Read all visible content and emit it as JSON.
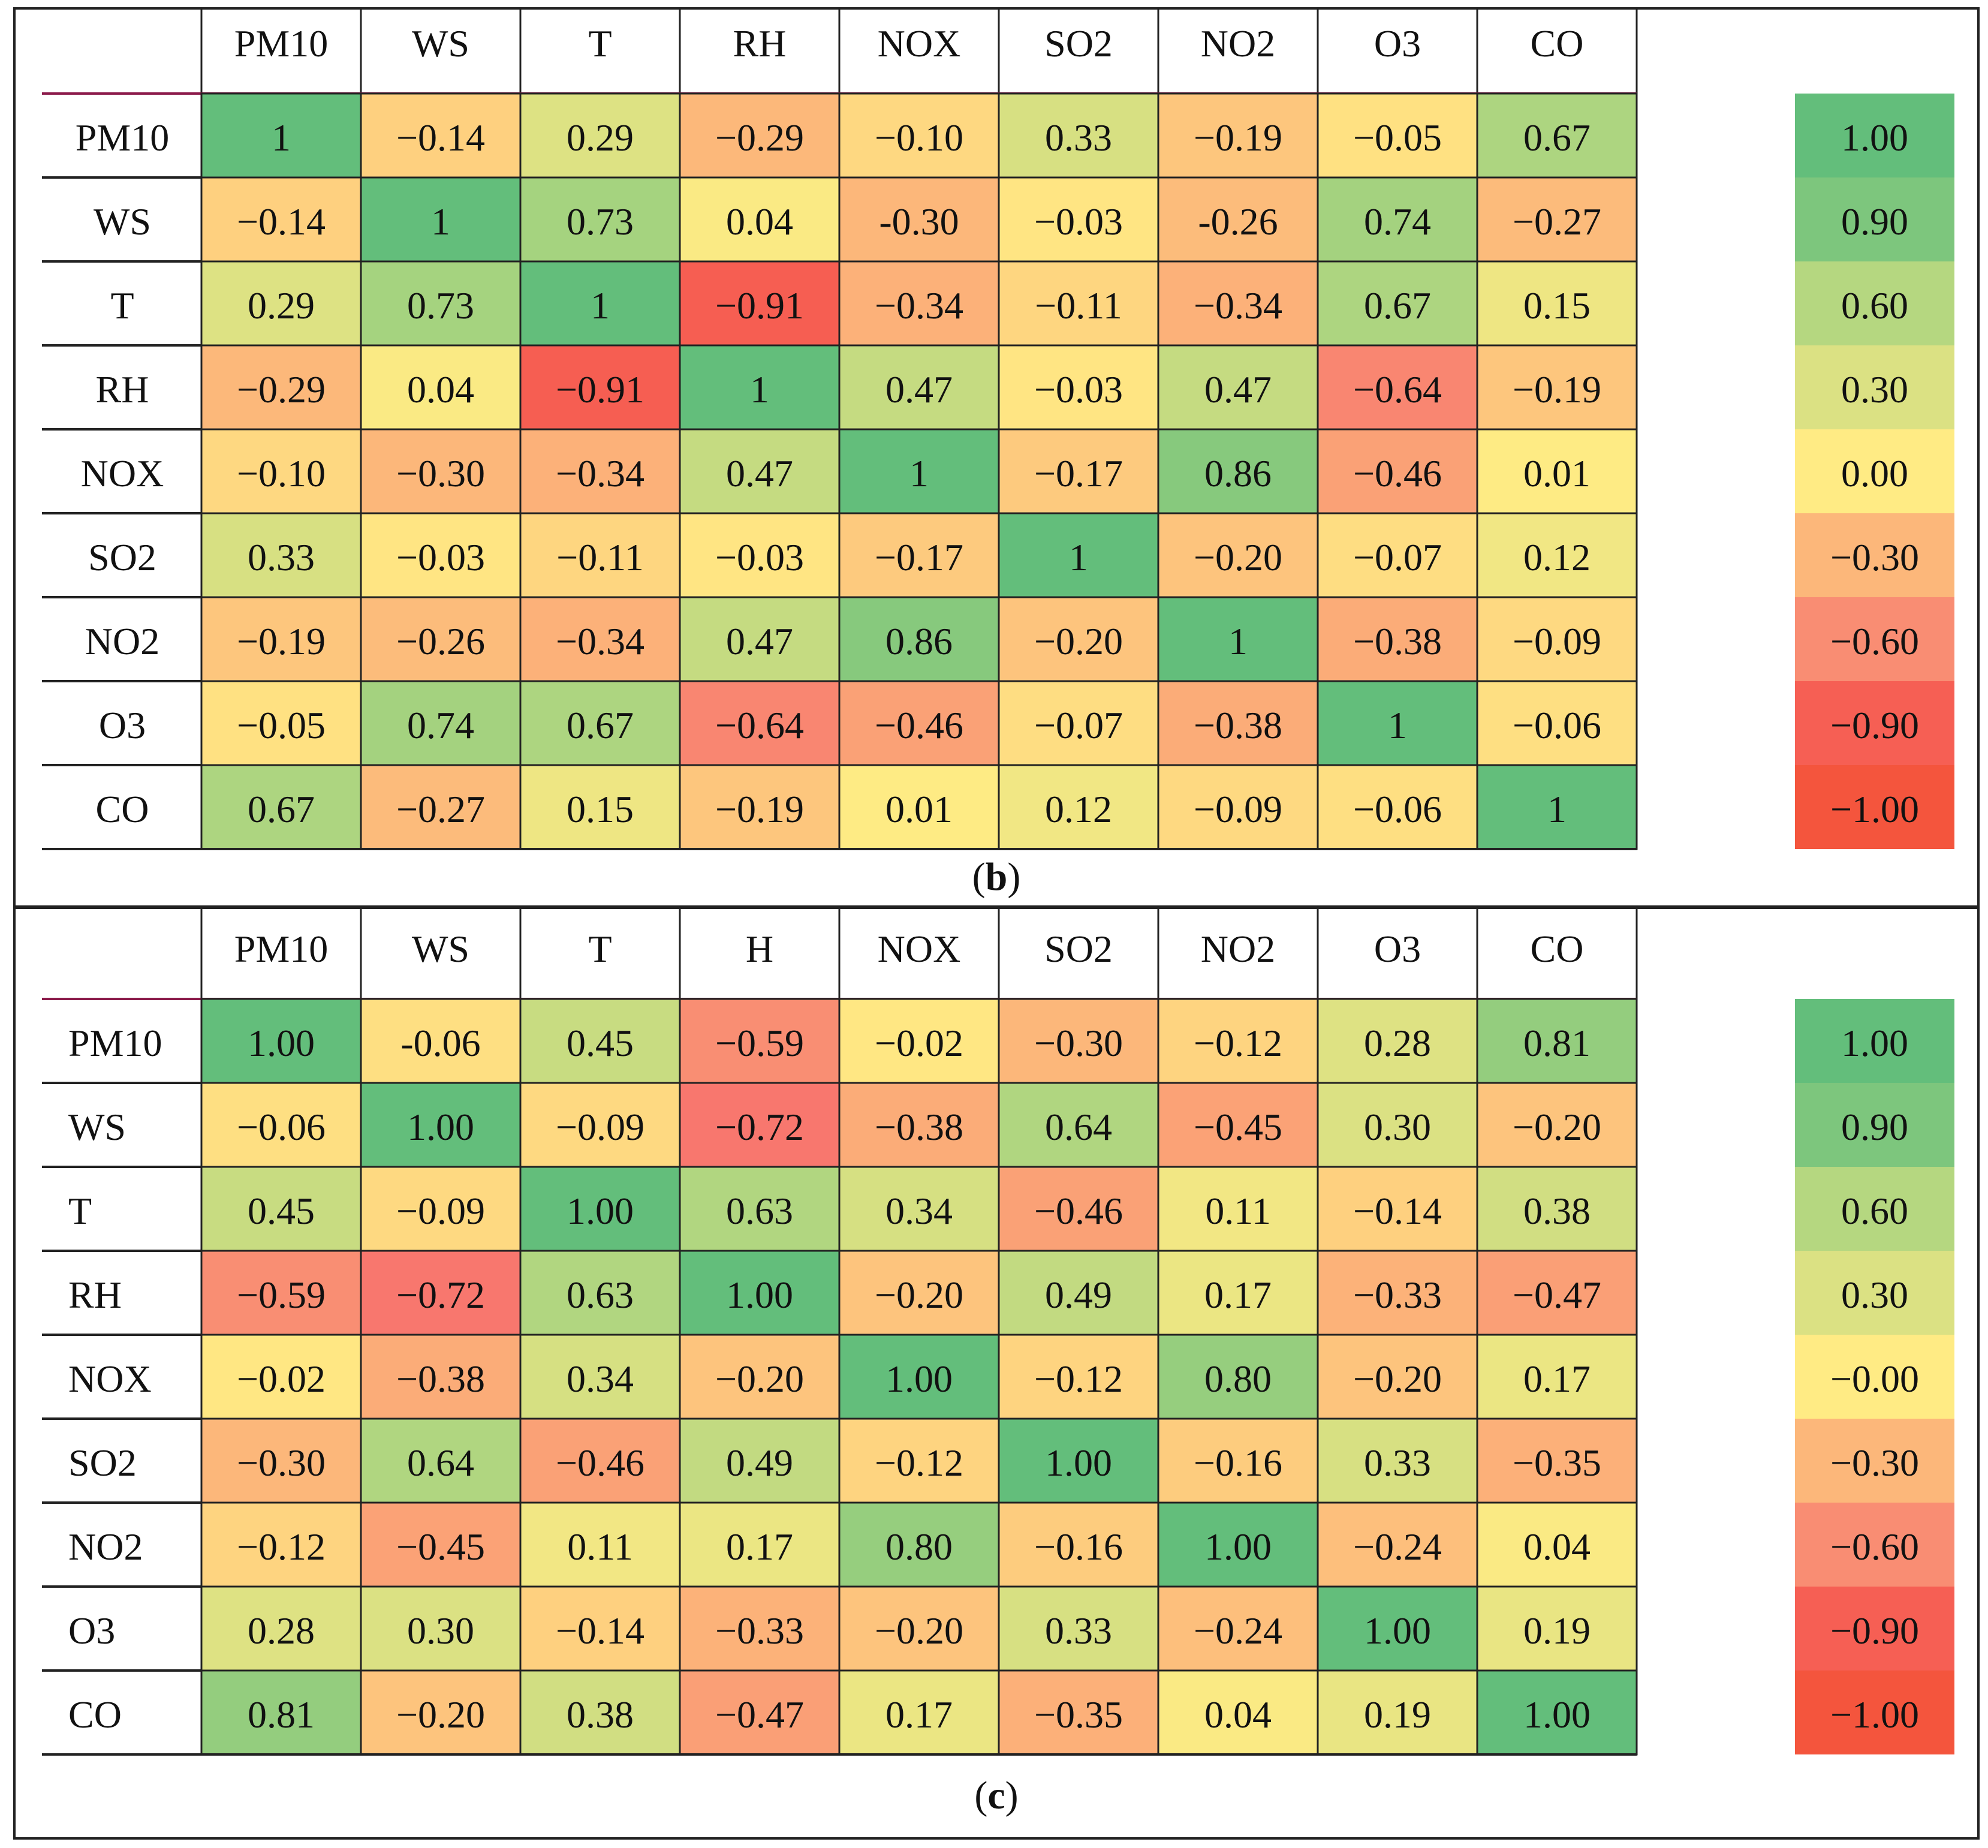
{
  "colors": {
    "scale_pos": [
      "#FFEB84",
      "#E2E383",
      "#C1DA81",
      "#A3D27F",
      "#63BE7B"
    ],
    "scale_neg": [
      "#FFEB84",
      "#FDC47D",
      "#FBA977",
      "#F98D73",
      "#F8696B",
      "#F4553D"
    ],
    "header_underline": "#8B1A4A"
  },
  "chart_data": [
    {
      "type": "heatmap",
      "panel_label": "b",
      "columns": [
        "PM10",
        "WS",
        "T",
        "RH",
        "NOX",
        "SO2",
        "NO2",
        "O3",
        "CO"
      ],
      "rows": [
        "PM10",
        "WS",
        "T",
        "RH",
        "NOX",
        "SO2",
        "NO2",
        "O3",
        "CO"
      ],
      "values": [
        [
          1,
          -0.14,
          0.29,
          -0.29,
          -0.1,
          0.33,
          -0.19,
          -0.05,
          0.67
        ],
        [
          -0.14,
          1,
          0.73,
          0.04,
          -0.3,
          -0.03,
          -0.26,
          0.74,
          -0.27
        ],
        [
          0.29,
          0.73,
          1,
          -0.91,
          -0.34,
          -0.11,
          -0.34,
          0.67,
          0.15
        ],
        [
          -0.29,
          0.04,
          -0.91,
          1,
          0.47,
          -0.03,
          0.47,
          -0.64,
          -0.19
        ],
        [
          -0.1,
          -0.3,
          -0.34,
          0.47,
          1,
          -0.17,
          0.86,
          -0.46,
          0.01
        ],
        [
          0.33,
          -0.03,
          -0.11,
          -0.03,
          -0.17,
          1,
          -0.2,
          -0.07,
          0.12
        ],
        [
          -0.19,
          -0.26,
          -0.34,
          0.47,
          0.86,
          -0.2,
          1,
          -0.38,
          -0.09
        ],
        [
          -0.05,
          0.74,
          0.67,
          -0.64,
          -0.46,
          -0.07,
          -0.38,
          1,
          -0.06
        ],
        [
          0.67,
          -0.27,
          0.15,
          -0.19,
          0.01,
          0.12,
          -0.09,
          -0.06,
          1
        ]
      ],
      "labels": [
        [
          "1",
          "−0.14",
          "0.29",
          "−0.29",
          "−0.10",
          "0.33",
          "−0.19",
          "−0.05",
          "0.67"
        ],
        [
          "−0.14",
          "1",
          "0.73",
          "0.04",
          "-0.30",
          "−0.03",
          "-0.26",
          "0.74",
          "−0.27"
        ],
        [
          "0.29",
          "0.73",
          "1",
          "−0.91",
          "−0.34",
          "−0.11",
          "−0.34",
          "0.67",
          "0.15"
        ],
        [
          "−0.29",
          "0.04",
          "−0.91",
          "1",
          "0.47",
          "−0.03",
          "0.47",
          "−0.64",
          "−0.19"
        ],
        [
          "−0.10",
          "−0.30",
          "−0.34",
          "0.47",
          "1",
          "−0.17",
          "0.86",
          "−0.46",
          "0.01"
        ],
        [
          "0.33",
          "−0.03",
          "−0.11",
          "−0.03",
          "−0.17",
          "1",
          "−0.20",
          "−0.07",
          "0.12"
        ],
        [
          "−0.19",
          "−0.26",
          "−0.34",
          "0.47",
          "0.86",
          "−0.20",
          "1",
          "−0.38",
          "−0.09"
        ],
        [
          "−0.05",
          "0.74",
          "0.67",
          "−0.64",
          "−0.46",
          "−0.07",
          "−0.38",
          "1",
          "−0.06"
        ],
        [
          "0.67",
          "−0.27",
          "0.15",
          "−0.19",
          "0.01",
          "0.12",
          "−0.09",
          "−0.06",
          "1"
        ]
      ],
      "legend": {
        "values": [
          1.0,
          0.9,
          0.6,
          0.3,
          0.0,
          -0.3,
          -0.6,
          -0.9,
          -1.0
        ],
        "labels": [
          "1.00",
          "0.90",
          "0.60",
          "0.30",
          "0.00",
          "−0.30",
          "−0.60",
          "−0.90",
          "−1.00"
        ]
      }
    },
    {
      "type": "heatmap",
      "panel_label": "c",
      "columns": [
        "PM10",
        "WS",
        "T",
        "H",
        "NOX",
        "SO2",
        "NO2",
        "O3",
        "CO"
      ],
      "rows": [
        "PM10",
        "WS",
        "T",
        "RH",
        "NOX",
        "SO2",
        "NO2",
        "O3",
        "CO"
      ],
      "values": [
        [
          1.0,
          -0.06,
          0.45,
          -0.59,
          -0.02,
          -0.3,
          -0.12,
          0.28,
          0.81
        ],
        [
          -0.06,
          1.0,
          -0.09,
          -0.72,
          -0.38,
          0.64,
          -0.45,
          0.3,
          -0.2
        ],
        [
          0.45,
          -0.09,
          1.0,
          0.63,
          0.34,
          -0.46,
          0.11,
          -0.14,
          0.38
        ],
        [
          -0.59,
          -0.72,
          0.63,
          1.0,
          -0.2,
          0.49,
          0.17,
          -0.33,
          -0.47
        ],
        [
          -0.02,
          -0.38,
          0.34,
          -0.2,
          1.0,
          -0.12,
          0.8,
          -0.2,
          0.17
        ],
        [
          -0.3,
          0.64,
          -0.46,
          0.49,
          -0.12,
          1.0,
          -0.16,
          0.33,
          -0.35
        ],
        [
          -0.12,
          -0.45,
          0.11,
          0.17,
          0.8,
          -0.16,
          1.0,
          -0.24,
          0.04
        ],
        [
          0.28,
          0.3,
          -0.14,
          -0.33,
          -0.2,
          0.33,
          -0.24,
          1.0,
          0.19
        ],
        [
          0.81,
          -0.2,
          0.38,
          -0.47,
          0.17,
          -0.35,
          0.04,
          0.19,
          1.0
        ]
      ],
      "labels": [
        [
          "1.00",
          "-0.06",
          "0.45",
          "−0.59",
          "−0.02",
          "−0.30",
          "−0.12",
          "0.28",
          "0.81"
        ],
        [
          "−0.06",
          "1.00",
          "−0.09",
          "−0.72",
          "−0.38",
          "0.64",
          "−0.45",
          "0.30",
          "−0.20"
        ],
        [
          "0.45",
          "−0.09",
          "1.00",
          "0.63",
          "0.34",
          "−0.46",
          "0.11",
          "−0.14",
          "0.38"
        ],
        [
          "−0.59",
          "−0.72",
          "0.63",
          "1.00",
          "−0.20",
          "0.49",
          "0.17",
          "−0.33",
          "−0.47"
        ],
        [
          "−0.02",
          "−0.38",
          "0.34",
          "−0.20",
          "1.00",
          "−0.12",
          "0.80",
          "−0.20",
          "0.17"
        ],
        [
          "−0.30",
          "0.64",
          "−0.46",
          "0.49",
          "−0.12",
          "1.00",
          "−0.16",
          "0.33",
          "−0.35"
        ],
        [
          "−0.12",
          "−0.45",
          "0.11",
          "0.17",
          "0.80",
          "−0.16",
          "1.00",
          "−0.24",
          "0.04"
        ],
        [
          "0.28",
          "0.30",
          "−0.14",
          "−0.33",
          "−0.20",
          "0.33",
          "−0.24",
          "1.00",
          "0.19"
        ],
        [
          "0.81",
          "−0.20",
          "0.38",
          "−0.47",
          "0.17",
          "−0.35",
          "0.04",
          "0.19",
          "1.00"
        ]
      ],
      "legend": {
        "values": [
          1.0,
          0.9,
          0.6,
          0.3,
          0.0,
          -0.3,
          -0.6,
          -0.9,
          -1.0
        ],
        "labels": [
          "1.00",
          "0.90",
          "0.60",
          "0.30",
          "−0.00",
          "−0.30",
          "−0.60",
          "−0.90",
          "−1.00"
        ]
      }
    }
  ]
}
